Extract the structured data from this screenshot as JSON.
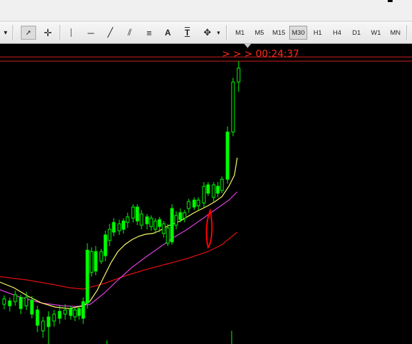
{
  "toolbar": {
    "tools": [
      {
        "name": "dropdown-arrow-icon",
        "glyph": "▾"
      },
      {
        "name": "cursor-icon",
        "glyph": "➚"
      },
      {
        "name": "crosshair-icon",
        "glyph": "✛"
      },
      {
        "name": "vertical-line-icon",
        "glyph": "│"
      },
      {
        "name": "horizontal-line-icon",
        "glyph": "─"
      },
      {
        "name": "trendline-icon",
        "glyph": "╱"
      },
      {
        "name": "equidistant-channel-icon",
        "glyph": "⫽"
      },
      {
        "name": "fibonacci-icon",
        "glyph": "≡"
      },
      {
        "name": "text-label-icon",
        "glyph": "A"
      },
      {
        "name": "text-box-icon",
        "glyph": "T"
      },
      {
        "name": "arrow-shapes-icon",
        "glyph": "✥"
      }
    ],
    "timeframes": [
      "M1",
      "M5",
      "M15",
      "M30",
      "H1",
      "H4",
      "D1",
      "W1",
      "MN"
    ],
    "active_timeframe": "M30"
  },
  "chart": {
    "countdown_prefix": "> > >",
    "countdown": "00:24:37",
    "colors": {
      "background": "#000000",
      "bull": "#00ff00",
      "price_line": "#d42020",
      "ma_fast": "#ffff66",
      "ma_mid": "#e040e0",
      "ma_slow": "#e01010",
      "annotation": "#ff0000"
    }
  }
}
